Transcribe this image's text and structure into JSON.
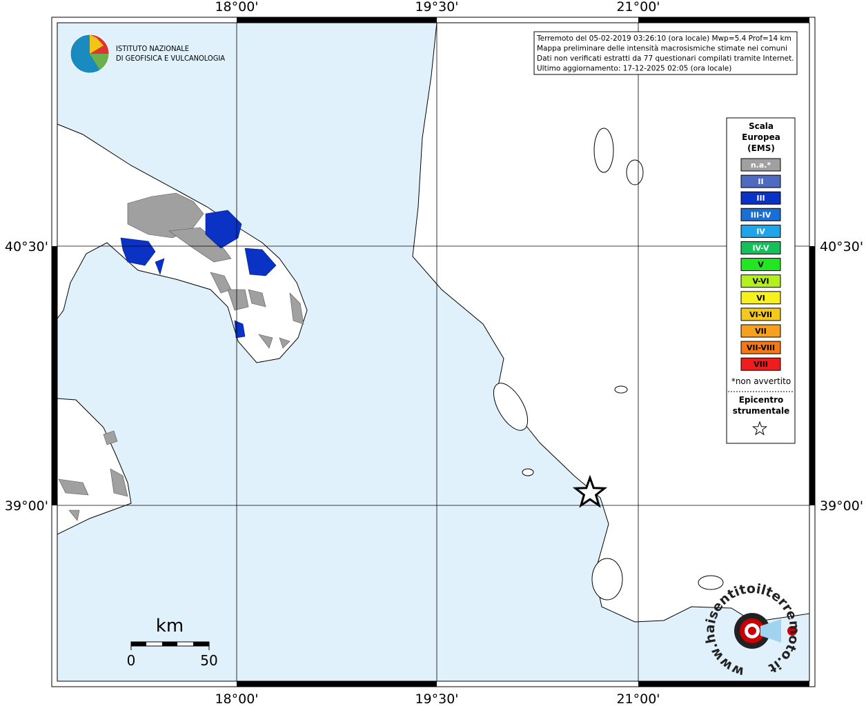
{
  "map": {
    "top_labels": [
      "18°00'",
      "19°30'",
      "21°00'"
    ],
    "bottom_labels": [
      "18°00'",
      "19°30'",
      "21°00'"
    ],
    "left_labels": [
      "40°30'",
      "39°00'"
    ],
    "right_labels": [
      "40°30'",
      "39°00'"
    ],
    "info": [
      "Terremoto del 05-02-2019 03:26:10 (ora locale) Mwp=5.4 Prof=14 km",
      "Mappa preliminare delle intensità macrosismiche stimate nei comuni",
      "Dati non verificati estratti da 77 questionari compilati tramite Internet.",
      "Ultimo aggiornamento: 17-12-2025 02:05 (ora locale)"
    ],
    "institute": [
      "ISTITUTO NAZIONALE",
      "DI GEOFISICA E VULCANOLOGIA"
    ],
    "legend": {
      "title": [
        "Scala",
        "Europea",
        "(EMS)"
      ],
      "items": [
        {
          "label": "n.a.*",
          "color": "#a0a0a0"
        },
        {
          "label": "II",
          "color": "#4f6bbf"
        },
        {
          "label": "III",
          "color": "#0a32c4"
        },
        {
          "label": "III-IV",
          "color": "#1a6ed8"
        },
        {
          "label": "IV",
          "color": "#1ea4e8"
        },
        {
          "label": "IV-V",
          "color": "#14c05a"
        },
        {
          "label": "V",
          "color": "#22e622"
        },
        {
          "label": "V-VI",
          "color": "#b4f01e"
        },
        {
          "label": "VI",
          "color": "#f5f01e"
        },
        {
          "label": "VI-VII",
          "color": "#f5c81e"
        },
        {
          "label": "VII",
          "color": "#f5a01e"
        },
        {
          "label": "VII-VIII",
          "color": "#f57814"
        },
        {
          "label": "VIII",
          "color": "#ee1e1e"
        }
      ],
      "note": "*non avvertito",
      "epicentre": [
        "Epicentro",
        "strumentale"
      ]
    },
    "scale": {
      "unit": "km",
      "start": "0",
      "end": "50"
    },
    "logo_text": "www.haisentitoilterremoto.it"
  }
}
